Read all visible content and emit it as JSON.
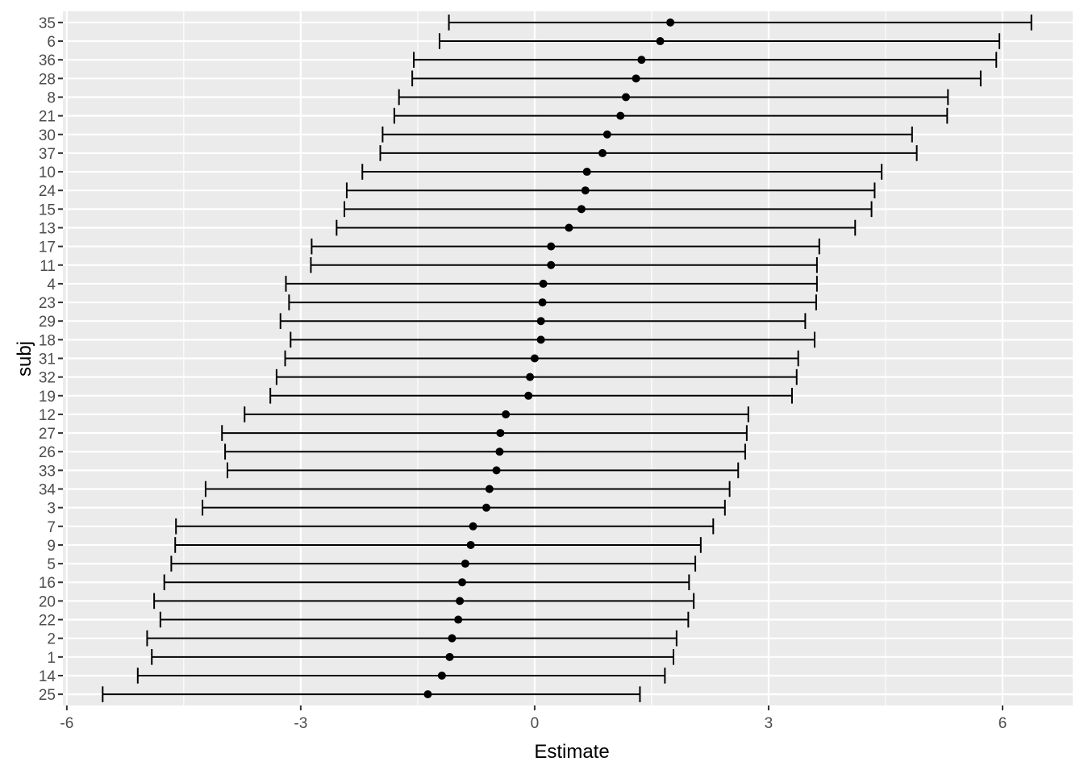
{
  "chart_data": {
    "type": "errorbar",
    "xlabel": "Estimate",
    "ylabel": "subj",
    "xlim": [
      -6.05,
      6.9
    ],
    "x_ticks": [
      -6,
      -3,
      0,
      3,
      6
    ],
    "x_tick_labels": [
      "-6",
      "-3",
      "0",
      "3",
      "6"
    ],
    "x_minor_ticks": [
      -4.5,
      -1.5,
      1.5,
      4.5
    ],
    "grid": true,
    "colors": {
      "panel": "#ebebeb",
      "grid": "#ffffff",
      "mark": "#000000",
      "tick_text": "#4d4d4d"
    },
    "rows": [
      {
        "subj": "35",
        "estimate": 1.74,
        "lower": -1.1,
        "upper": 6.37
      },
      {
        "subj": "6",
        "estimate": 1.61,
        "lower": -1.22,
        "upper": 5.96
      },
      {
        "subj": "36",
        "estimate": 1.37,
        "lower": -1.55,
        "upper": 5.92
      },
      {
        "subj": "28",
        "estimate": 1.3,
        "lower": -1.57,
        "upper": 5.72
      },
      {
        "subj": "8",
        "estimate": 1.17,
        "lower": -1.74,
        "upper": 5.3
      },
      {
        "subj": "21",
        "estimate": 1.1,
        "lower": -1.8,
        "upper": 5.29
      },
      {
        "subj": "30",
        "estimate": 0.93,
        "lower": -1.95,
        "upper": 4.84
      },
      {
        "subj": "37",
        "estimate": 0.87,
        "lower": -1.98,
        "upper": 4.9
      },
      {
        "subj": "10",
        "estimate": 0.67,
        "lower": -2.21,
        "upper": 4.45
      },
      {
        "subj": "24",
        "estimate": 0.65,
        "lower": -2.41,
        "upper": 4.36
      },
      {
        "subj": "15",
        "estimate": 0.6,
        "lower": -2.44,
        "upper": 4.32
      },
      {
        "subj": "13",
        "estimate": 0.44,
        "lower": -2.54,
        "upper": 4.11
      },
      {
        "subj": "17",
        "estimate": 0.21,
        "lower": -2.86,
        "upper": 3.65
      },
      {
        "subj": "11",
        "estimate": 0.21,
        "lower": -2.87,
        "upper": 3.62
      },
      {
        "subj": "4",
        "estimate": 0.11,
        "lower": -3.19,
        "upper": 3.62
      },
      {
        "subj": "23",
        "estimate": 0.1,
        "lower": -3.15,
        "upper": 3.61
      },
      {
        "subj": "29",
        "estimate": 0.08,
        "lower": -3.26,
        "upper": 3.47
      },
      {
        "subj": "18",
        "estimate": 0.08,
        "lower": -3.13,
        "upper": 3.59
      },
      {
        "subj": "31",
        "estimate": 0.0,
        "lower": -3.2,
        "upper": 3.38
      },
      {
        "subj": "32",
        "estimate": -0.06,
        "lower": -3.31,
        "upper": 3.36
      },
      {
        "subj": "19",
        "estimate": -0.08,
        "lower": -3.39,
        "upper": 3.3
      },
      {
        "subj": "12",
        "estimate": -0.37,
        "lower": -3.72,
        "upper": 2.74
      },
      {
        "subj": "27",
        "estimate": -0.44,
        "lower": -4.01,
        "upper": 2.72
      },
      {
        "subj": "26",
        "estimate": -0.45,
        "lower": -3.97,
        "upper": 2.7
      },
      {
        "subj": "33",
        "estimate": -0.49,
        "lower": -3.94,
        "upper": 2.61
      },
      {
        "subj": "34",
        "estimate": -0.58,
        "lower": -4.22,
        "upper": 2.5
      },
      {
        "subj": "3",
        "estimate": -0.62,
        "lower": -4.26,
        "upper": 2.44
      },
      {
        "subj": "7",
        "estimate": -0.79,
        "lower": -4.6,
        "upper": 2.29
      },
      {
        "subj": "9",
        "estimate": -0.82,
        "lower": -4.61,
        "upper": 2.13
      },
      {
        "subj": "5",
        "estimate": -0.89,
        "lower": -4.66,
        "upper": 2.06
      },
      {
        "subj": "16",
        "estimate": -0.93,
        "lower": -4.75,
        "upper": 1.98
      },
      {
        "subj": "20",
        "estimate": -0.96,
        "lower": -4.88,
        "upper": 2.04
      },
      {
        "subj": "22",
        "estimate": -0.98,
        "lower": -4.8,
        "upper": 1.97
      },
      {
        "subj": "2",
        "estimate": -1.06,
        "lower": -4.97,
        "upper": 1.82
      },
      {
        "subj": "1",
        "estimate": -1.09,
        "lower": -4.91,
        "upper": 1.78
      },
      {
        "subj": "14",
        "estimate": -1.19,
        "lower": -5.09,
        "upper": 1.67
      },
      {
        "subj": "25",
        "estimate": -1.37,
        "lower": -5.54,
        "upper": 1.35
      }
    ]
  }
}
